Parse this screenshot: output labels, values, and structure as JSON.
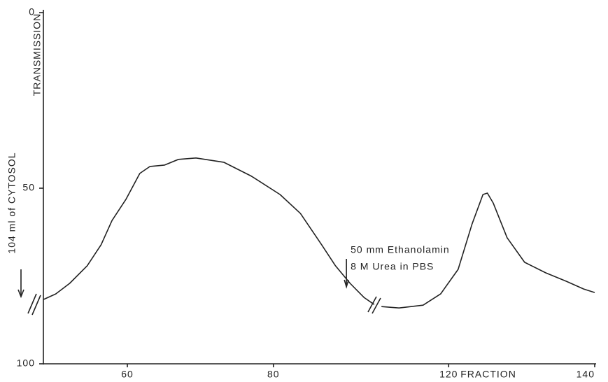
{
  "chart_data": {
    "type": "line",
    "y_label": "TRANSMISSION",
    "x_label": "FRACTION",
    "annotations": [
      "104 ml of CYTOSOL",
      "50 mm Ethanolamin",
      "8 M Urea in PBS"
    ],
    "annotation_x": 90,
    "xlim": [
      48.5,
      140
    ],
    "xticks": [
      60,
      80,
      120,
      140
    ],
    "x_break": [
      94,
      110
    ],
    "ylim": [
      100,
      0
    ],
    "yticks": [
      0,
      50,
      100
    ],
    "x": [
      48.5,
      50.2,
      52.1,
      54.5,
      56.4,
      57.9,
      59.8,
      61.7,
      63.1,
      65.1,
      67.0,
      69.4,
      73.2,
      77.0,
      80.9,
      83.7,
      86.6,
      88.5,
      90.5,
      92.4,
      93.8,
      94,
      110.8,
      113.2,
      116.5,
      118.9,
      121.3,
      123.2,
      124.7,
      125.3,
      126.1,
      128.0,
      130.4,
      133.3,
      136.1,
      138.5,
      140
    ],
    "series": [
      {
        "color": "#222222",
        "values": [
          81.7,
          80.1,
          77.1,
          72.1,
          66.1,
          59.2,
          53.2,
          45.8,
          43.8,
          43.4,
          41.8,
          41.4,
          42.6,
          46.6,
          51.8,
          57.2,
          66.1,
          72.1,
          77.1,
          81.1,
          83.1,
          null,
          83.7,
          84.1,
          83.3,
          80.1,
          73.1,
          60.2,
          51.8,
          51.4,
          54.2,
          64.1,
          71.1,
          74.1,
          76.5,
          78.7,
          79.7
        ]
      }
    ]
  }
}
